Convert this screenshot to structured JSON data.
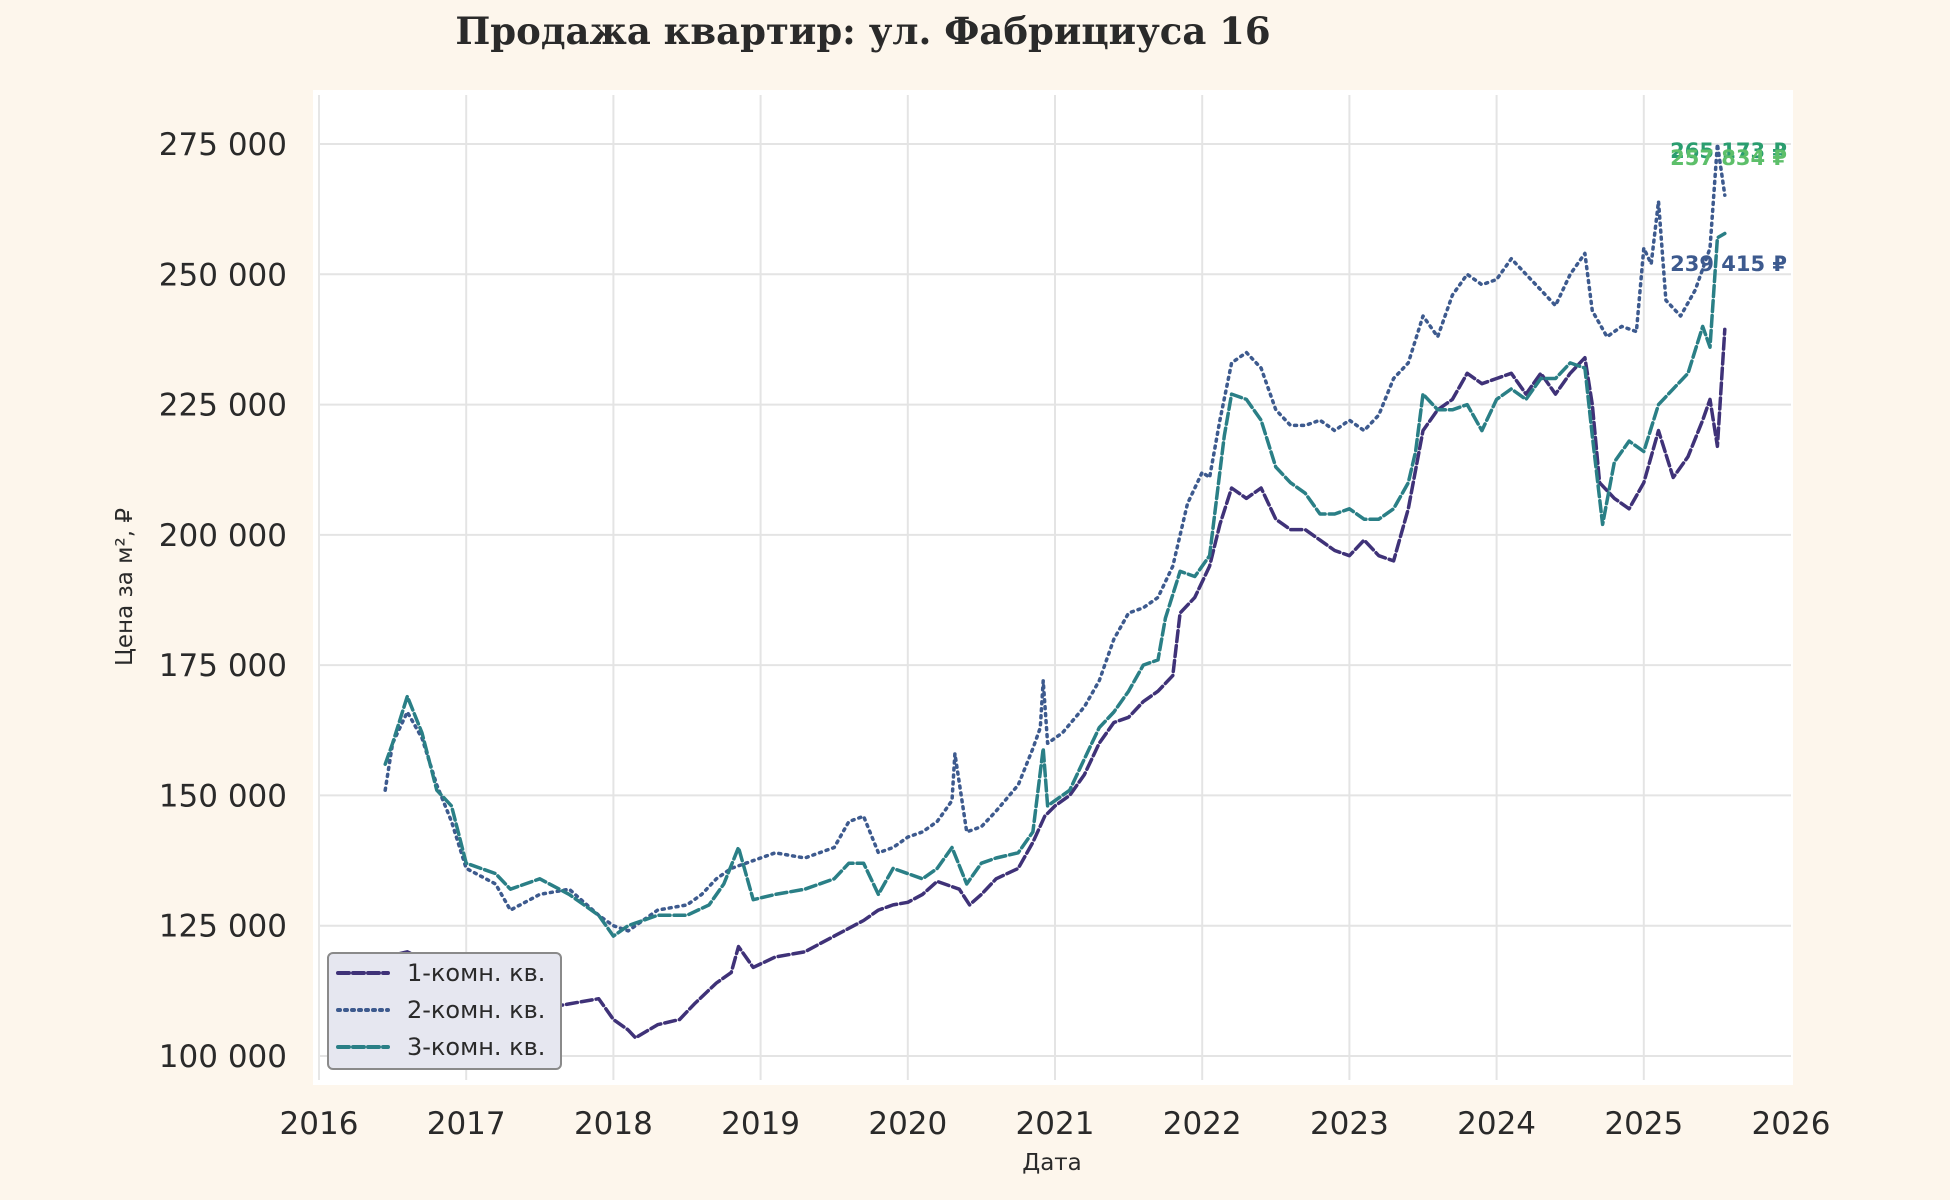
{
  "chart_data": {
    "type": "line",
    "title": "Продажа квартир: ул. Фабрициуса 16",
    "xlabel": "Дата",
    "ylabel": "Цена за м², ₽",
    "xlim": [
      2016,
      2026
    ],
    "ylim": [
      95000,
      280000
    ],
    "x_ticks": [
      "2016",
      "2017",
      "2018",
      "2019",
      "2020",
      "2021",
      "2022",
      "2023",
      "2024",
      "2025",
      "2026"
    ],
    "y_ticks": [
      {
        "value": 100000,
        "label": "100 000"
      },
      {
        "value": 125000,
        "label": "125 000"
      },
      {
        "value": 150000,
        "label": "150 000"
      },
      {
        "value": 175000,
        "label": "175 000"
      },
      {
        "value": 200000,
        "label": "200 000"
      },
      {
        "value": 225000,
        "label": "225 000"
      },
      {
        "value": 250000,
        "label": "250 000"
      },
      {
        "value": 275000,
        "label": "275 000"
      }
    ],
    "grid": true,
    "legend_position": "lower-left",
    "series": [
      {
        "name": "1-комн. кв.",
        "color": "#3f3278",
        "style": "dashed",
        "end_label": "239 415 ₽",
        "points": [
          [
            2016.45,
            119000
          ],
          [
            2016.6,
            120000
          ],
          [
            2016.75,
            118000
          ],
          [
            2016.9,
            115000
          ],
          [
            2017.1,
            113000
          ],
          [
            2017.3,
            111000
          ],
          [
            2017.5,
            109000
          ],
          [
            2017.7,
            110000
          ],
          [
            2017.9,
            111000
          ],
          [
            2018.0,
            107000
          ],
          [
            2018.1,
            105000
          ],
          [
            2018.15,
            103500
          ],
          [
            2018.3,
            106000
          ],
          [
            2018.45,
            107000
          ],
          [
            2018.55,
            110000
          ],
          [
            2018.7,
            114000
          ],
          [
            2018.8,
            116000
          ],
          [
            2018.85,
            121000
          ],
          [
            2018.95,
            117000
          ],
          [
            2019.1,
            119000
          ],
          [
            2019.3,
            120000
          ],
          [
            2019.5,
            123000
          ],
          [
            2019.7,
            126000
          ],
          [
            2019.8,
            128000
          ],
          [
            2019.9,
            129000
          ],
          [
            2020.0,
            129500
          ],
          [
            2020.1,
            131000
          ],
          [
            2020.2,
            133500
          ],
          [
            2020.35,
            132000
          ],
          [
            2020.42,
            129000
          ],
          [
            2020.5,
            131000
          ],
          [
            2020.6,
            134000
          ],
          [
            2020.75,
            136000
          ],
          [
            2020.85,
            141000
          ],
          [
            2020.93,
            146000
          ],
          [
            2021.0,
            148000
          ],
          [
            2021.1,
            150000
          ],
          [
            2021.2,
            154000
          ],
          [
            2021.3,
            160000
          ],
          [
            2021.4,
            164000
          ],
          [
            2021.5,
            165000
          ],
          [
            2021.6,
            168000
          ],
          [
            2021.7,
            170000
          ],
          [
            2021.8,
            173000
          ],
          [
            2021.85,
            185000
          ],
          [
            2021.95,
            188000
          ],
          [
            2022.05,
            194000
          ],
          [
            2022.12,
            202000
          ],
          [
            2022.2,
            209000
          ],
          [
            2022.3,
            207000
          ],
          [
            2022.4,
            209000
          ],
          [
            2022.5,
            203000
          ],
          [
            2022.6,
            201000
          ],
          [
            2022.7,
            201000
          ],
          [
            2022.8,
            199000
          ],
          [
            2022.9,
            197000
          ],
          [
            2023.0,
            196000
          ],
          [
            2023.1,
            199000
          ],
          [
            2023.2,
            196000
          ],
          [
            2023.3,
            195000
          ],
          [
            2023.4,
            205000
          ],
          [
            2023.5,
            220000
          ],
          [
            2023.6,
            224000
          ],
          [
            2023.7,
            226000
          ],
          [
            2023.8,
            231000
          ],
          [
            2023.9,
            229000
          ],
          [
            2024.0,
            230000
          ],
          [
            2024.1,
            231000
          ],
          [
            2024.2,
            227000
          ],
          [
            2024.3,
            231000
          ],
          [
            2024.4,
            227000
          ],
          [
            2024.5,
            231000
          ],
          [
            2024.6,
            234000
          ],
          [
            2024.65,
            225000
          ],
          [
            2024.7,
            210000
          ],
          [
            2024.8,
            207000
          ],
          [
            2024.9,
            205000
          ],
          [
            2025.0,
            210000
          ],
          [
            2025.1,
            220000
          ],
          [
            2025.2,
            211000
          ],
          [
            2025.3,
            215000
          ],
          [
            2025.4,
            222000
          ],
          [
            2025.45,
            226000
          ],
          [
            2025.5,
            217000
          ],
          [
            2025.55,
            239415
          ]
        ]
      },
      {
        "name": "2-комн. кв.",
        "color": "#3d5a8e",
        "style": "dotted",
        "end_label": "265 173 ₽",
        "points": [
          [
            2016.45,
            151000
          ],
          [
            2016.5,
            160000
          ],
          [
            2016.6,
            166000
          ],
          [
            2016.7,
            161000
          ],
          [
            2016.8,
            152000
          ],
          [
            2016.9,
            145000
          ],
          [
            2017.0,
            136000
          ],
          [
            2017.2,
            133000
          ],
          [
            2017.3,
            128000
          ],
          [
            2017.5,
            131000
          ],
          [
            2017.7,
            132000
          ],
          [
            2017.9,
            127000
          ],
          [
            2018.0,
            125000
          ],
          [
            2018.1,
            124000
          ],
          [
            2018.3,
            128000
          ],
          [
            2018.5,
            129000
          ],
          [
            2018.6,
            131000
          ],
          [
            2018.7,
            134000
          ],
          [
            2018.8,
            136000
          ],
          [
            2018.9,
            137000
          ],
          [
            2019.1,
            139000
          ],
          [
            2019.3,
            138000
          ],
          [
            2019.5,
            140000
          ],
          [
            2019.6,
            145000
          ],
          [
            2019.7,
            146000
          ],
          [
            2019.8,
            139000
          ],
          [
            2019.9,
            140000
          ],
          [
            2020.0,
            142000
          ],
          [
            2020.1,
            143000
          ],
          [
            2020.2,
            145000
          ],
          [
            2020.3,
            149000
          ],
          [
            2020.32,
            158000
          ],
          [
            2020.4,
            143000
          ],
          [
            2020.5,
            144000
          ],
          [
            2020.6,
            147000
          ],
          [
            2020.75,
            152000
          ],
          [
            2020.85,
            159000
          ],
          [
            2020.9,
            163000
          ],
          [
            2020.92,
            172000
          ],
          [
            2020.95,
            160000
          ],
          [
            2021.05,
            162000
          ],
          [
            2021.2,
            167000
          ],
          [
            2021.3,
            172000
          ],
          [
            2021.4,
            180000
          ],
          [
            2021.5,
            185000
          ],
          [
            2021.6,
            186000
          ],
          [
            2021.7,
            188000
          ],
          [
            2021.8,
            194000
          ],
          [
            2021.9,
            206000
          ],
          [
            2022.0,
            212000
          ],
          [
            2022.05,
            211000
          ],
          [
            2022.12,
            222000
          ],
          [
            2022.2,
            233000
          ],
          [
            2022.3,
            235000
          ],
          [
            2022.4,
            232000
          ],
          [
            2022.5,
            224000
          ],
          [
            2022.6,
            221000
          ],
          [
            2022.7,
            221000
          ],
          [
            2022.8,
            222000
          ],
          [
            2022.9,
            220000
          ],
          [
            2023.0,
            222000
          ],
          [
            2023.1,
            220000
          ],
          [
            2023.2,
            223000
          ],
          [
            2023.3,
            230000
          ],
          [
            2023.4,
            233000
          ],
          [
            2023.5,
            242000
          ],
          [
            2023.6,
            238000
          ],
          [
            2023.7,
            246000
          ],
          [
            2023.8,
            250000
          ],
          [
            2023.9,
            248000
          ],
          [
            2024.0,
            249000
          ],
          [
            2024.1,
            253000
          ],
          [
            2024.2,
            250000
          ],
          [
            2024.3,
            247000
          ],
          [
            2024.4,
            244000
          ],
          [
            2024.5,
            250000
          ],
          [
            2024.6,
            254000
          ],
          [
            2024.65,
            243000
          ],
          [
            2024.75,
            238000
          ],
          [
            2024.85,
            240000
          ],
          [
            2024.95,
            239000
          ],
          [
            2025.0,
            255000
          ],
          [
            2025.05,
            252000
          ],
          [
            2025.1,
            264000
          ],
          [
            2025.15,
            245000
          ],
          [
            2025.25,
            242000
          ],
          [
            2025.35,
            247000
          ],
          [
            2025.45,
            255000
          ],
          [
            2025.5,
            275000
          ],
          [
            2025.55,
            265173
          ]
        ]
      },
      {
        "name": "3-комн. кв.",
        "color": "#2a7f86",
        "style": "dashed",
        "end_label": "257 834 ₽",
        "points": [
          [
            2016.45,
            156000
          ],
          [
            2016.5,
            160000
          ],
          [
            2016.6,
            169000
          ],
          [
            2016.7,
            162000
          ],
          [
            2016.8,
            151000
          ],
          [
            2016.9,
            148000
          ],
          [
            2017.0,
            137000
          ],
          [
            2017.2,
            135000
          ],
          [
            2017.3,
            132000
          ],
          [
            2017.5,
            134000
          ],
          [
            2017.7,
            131000
          ],
          [
            2017.9,
            127000
          ],
          [
            2018.0,
            123000
          ],
          [
            2018.1,
            125000
          ],
          [
            2018.3,
            127000
          ],
          [
            2018.5,
            127000
          ],
          [
            2018.65,
            129000
          ],
          [
            2018.75,
            133000
          ],
          [
            2018.85,
            140000
          ],
          [
            2018.95,
            130000
          ],
          [
            2019.1,
            131000
          ],
          [
            2019.3,
            132000
          ],
          [
            2019.5,
            134000
          ],
          [
            2019.6,
            137000
          ],
          [
            2019.7,
            137000
          ],
          [
            2019.8,
            131000
          ],
          [
            2019.9,
            136000
          ],
          [
            2020.0,
            135000
          ],
          [
            2020.1,
            134000
          ],
          [
            2020.2,
            136000
          ],
          [
            2020.3,
            140000
          ],
          [
            2020.4,
            133000
          ],
          [
            2020.5,
            137000
          ],
          [
            2020.6,
            138000
          ],
          [
            2020.75,
            139000
          ],
          [
            2020.85,
            143000
          ],
          [
            2020.92,
            159000
          ],
          [
            2020.95,
            148000
          ],
          [
            2021.1,
            151000
          ],
          [
            2021.2,
            157000
          ],
          [
            2021.3,
            163000
          ],
          [
            2021.4,
            166000
          ],
          [
            2021.5,
            170000
          ],
          [
            2021.6,
            175000
          ],
          [
            2021.7,
            176000
          ],
          [
            2021.75,
            184000
          ],
          [
            2021.85,
            193000
          ],
          [
            2021.95,
            192000
          ],
          [
            2022.05,
            196000
          ],
          [
            2022.15,
            219000
          ],
          [
            2022.2,
            227000
          ],
          [
            2022.3,
            226000
          ],
          [
            2022.4,
            222000
          ],
          [
            2022.5,
            213000
          ],
          [
            2022.6,
            210000
          ],
          [
            2022.7,
            208000
          ],
          [
            2022.8,
            204000
          ],
          [
            2022.9,
            204000
          ],
          [
            2023.0,
            205000
          ],
          [
            2023.1,
            203000
          ],
          [
            2023.2,
            203000
          ],
          [
            2023.3,
            205000
          ],
          [
            2023.4,
            210000
          ],
          [
            2023.45,
            216000
          ],
          [
            2023.5,
            227000
          ],
          [
            2023.6,
            224000
          ],
          [
            2023.7,
            224000
          ],
          [
            2023.8,
            225000
          ],
          [
            2023.9,
            220000
          ],
          [
            2024.0,
            226000
          ],
          [
            2024.1,
            228000
          ],
          [
            2024.2,
            226000
          ],
          [
            2024.3,
            230000
          ],
          [
            2024.4,
            230000
          ],
          [
            2024.5,
            233000
          ],
          [
            2024.6,
            232000
          ],
          [
            2024.65,
            219000
          ],
          [
            2024.72,
            202000
          ],
          [
            2024.8,
            214000
          ],
          [
            2024.9,
            218000
          ],
          [
            2025.0,
            216000
          ],
          [
            2025.1,
            225000
          ],
          [
            2025.2,
            228000
          ],
          [
            2025.3,
            231000
          ],
          [
            2025.4,
            240000
          ],
          [
            2025.45,
            236000
          ],
          [
            2025.5,
            257000
          ],
          [
            2025.55,
            257834
          ]
        ]
      }
    ]
  }
}
